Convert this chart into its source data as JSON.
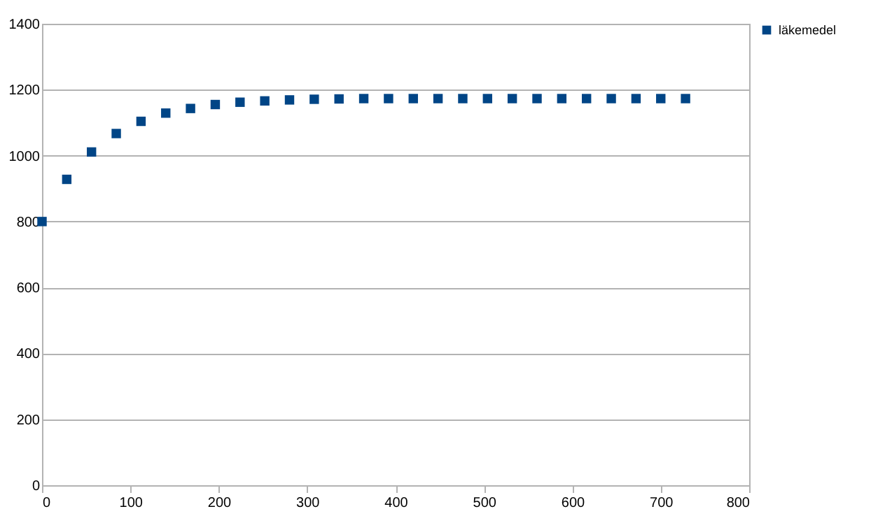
{
  "chart_data": {
    "type": "scatter",
    "x": [
      0,
      28,
      56,
      84,
      112,
      140,
      168,
      196,
      224,
      252,
      280,
      308,
      336,
      364,
      392,
      420,
      448,
      476,
      504,
      532,
      560,
      588,
      616,
      644,
      672,
      700,
      728
    ],
    "series": [
      {
        "name": "läkemedel",
        "color": "#004586",
        "values": [
          800,
          928,
          1011,
          1067,
          1104,
          1129,
          1143,
          1155,
          1162,
          1166,
          1169,
          1171,
          1172,
          1173,
          1173,
          1173,
          1173,
          1173,
          1173,
          1173,
          1173,
          1173,
          1173,
          1173,
          1173,
          1173,
          1173
        ]
      }
    ],
    "xlim": [
      0,
      800
    ],
    "xticks": [
      0,
      100,
      200,
      300,
      400,
      500,
      600,
      700,
      800
    ],
    "ylim": [
      0,
      1400
    ],
    "yticks": [
      0,
      200,
      400,
      600,
      800,
      1000,
      1200,
      1400
    ],
    "grid": "y",
    "legend": "right",
    "marker": "square"
  }
}
